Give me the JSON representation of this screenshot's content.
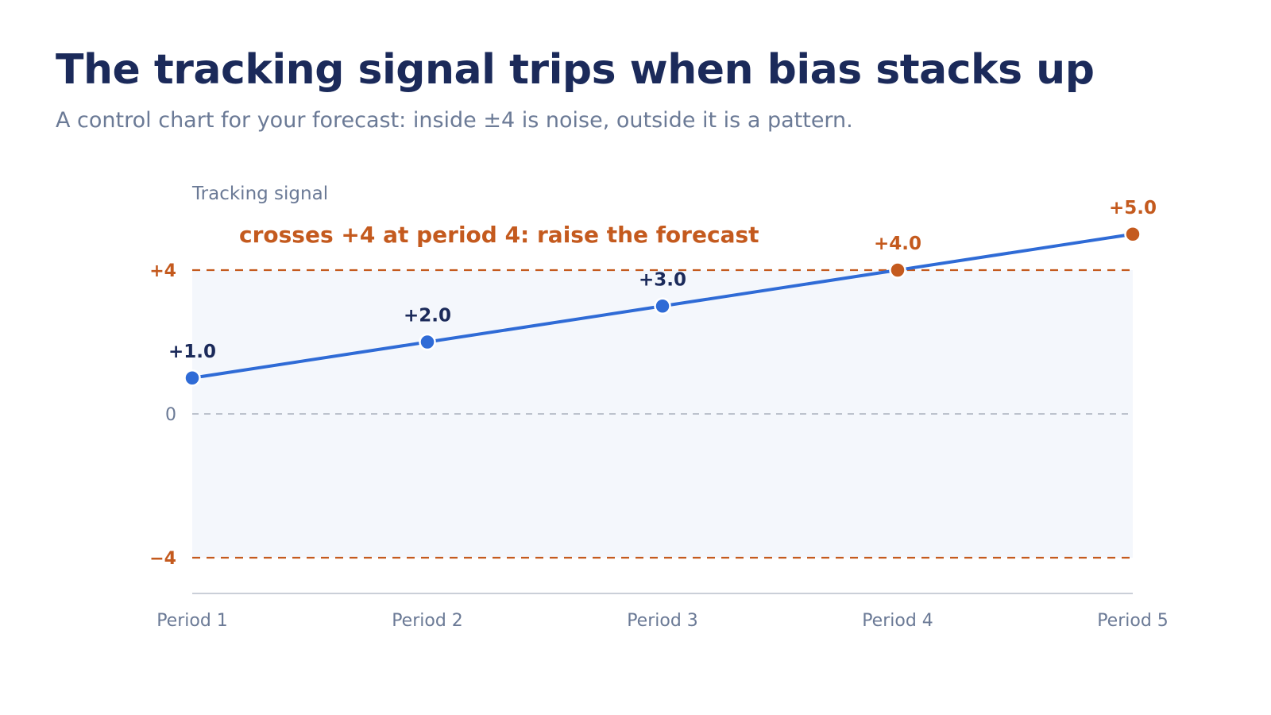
{
  "header": {
    "title": "The tracking signal trips when bias stacks up",
    "subtitle": "A control chart for your forecast: inside ±4 is noise, outside it is a pattern."
  },
  "colors": {
    "in_control": "#2f6bd6",
    "out_of_control": "#c45a1e",
    "band_fill": "#f4f7fc",
    "zero_line": "#a9b0bd",
    "axis": "#b8bfcc",
    "label_dark": "#1b2a5a"
  },
  "chart_data": {
    "type": "line",
    "ylabel": "Tracking signal",
    "categories": [
      "Period 1",
      "Period 2",
      "Period 3",
      "Period 4",
      "Period 5"
    ],
    "series": [
      {
        "values": [
          1.0,
          2.0,
          3.0,
          4.0,
          5.0
        ],
        "labels": [
          "+1.0",
          "+2.0",
          "+3.0",
          "+4.0",
          "+5.0"
        ]
      }
    ],
    "ylim": [
      -5,
      5
    ],
    "yticks": [
      {
        "value": 4,
        "label": "+4",
        "limit": true
      },
      {
        "value": 0,
        "label": "0",
        "limit": false
      },
      {
        "value": -4,
        "label": "−4",
        "limit": true
      }
    ],
    "control_limits": [
      4,
      -4
    ],
    "annotation": "crosses +4 at period 4: raise the forecast",
    "grid": false
  }
}
